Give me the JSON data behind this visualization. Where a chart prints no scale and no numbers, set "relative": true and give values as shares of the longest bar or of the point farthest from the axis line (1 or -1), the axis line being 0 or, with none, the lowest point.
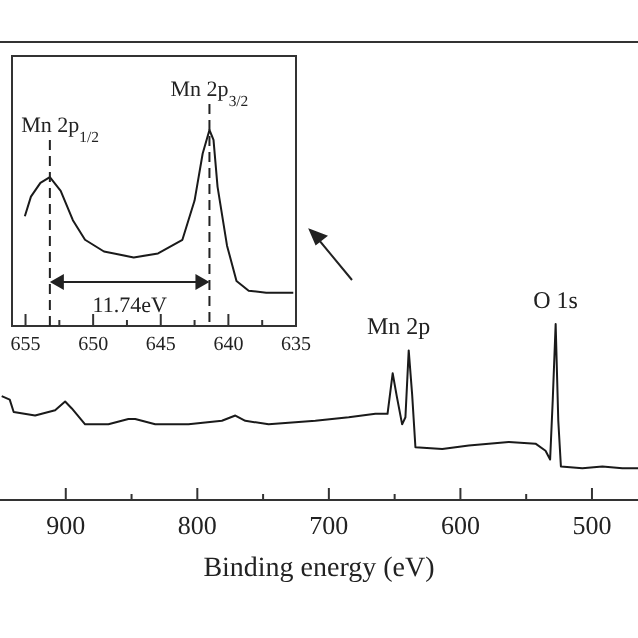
{
  "chart_data": [
    {
      "type": "line",
      "relative": true,
      "xlabel": "Binding energy (eV)",
      "xlim": [
        950,
        465
      ],
      "xticks": [
        {
          "value": 900,
          "label": "900"
        },
        {
          "value": 850,
          "label": null
        },
        {
          "value": 800,
          "label": "800"
        },
        {
          "value": 750,
          "label": null
        },
        {
          "value": 700,
          "label": "700"
        },
        {
          "value": 650,
          "label": null
        },
        {
          "value": 600,
          "label": "600"
        },
        {
          "value": 550,
          "label": null
        },
        {
          "value": 500,
          "label": "500"
        }
      ],
      "x": [
        948.7,
        942.6,
        939.6,
        923.3,
        908.1,
        900.5,
        895.4,
        885.3,
        867.6,
        852.4,
        847.2,
        832,
        806.7,
        781.3,
        771.1,
        763.5,
        745.8,
        710.3,
        684.9,
        664.6,
        655.4,
        651.5,
        648.4,
        644.3,
        641.8,
        639.3,
        636.7,
        634.2,
        613.8,
        593.6,
        563.2,
        542.9,
        535.3,
        531.8,
        529.8,
        527.6,
        525.6,
        523.6,
        507.3,
        492.1,
        476.9,
        465
      ],
      "series": [
        {
          "color": "#1a1a1a",
          "values": [
            0.59,
            0.57,
            0.5,
            0.48,
            0.51,
            0.56,
            0.52,
            0.43,
            0.43,
            0.46,
            0.46,
            0.43,
            0.43,
            0.45,
            0.48,
            0.45,
            0.43,
            0.45,
            0.47,
            0.49,
            0.49,
            0.72,
            0.59,
            0.43,
            0.47,
            0.85,
            0.6,
            0.3,
            0.29,
            0.31,
            0.33,
            0.32,
            0.28,
            0.23,
            0.57,
            1,
            0.45,
            0.19,
            0.18,
            0.19,
            0.18,
            0.18
          ]
        }
      ],
      "annotations": [
        {
          "text": "Mn 2p",
          "x": 647,
          "y": 0.85
        },
        {
          "text": "O 1s",
          "x": 527.6,
          "y": 1
        }
      ]
    },
    {
      "type": "line",
      "relative": true,
      "xlim": [
        656,
        635
      ],
      "xticks": [
        {
          "value": 655,
          "label": "655"
        },
        {
          "value": 652.5,
          "label": null
        },
        650,
        {
          "value": 647.5,
          "label": null
        },
        645,
        {
          "value": 642.5,
          "label": null
        },
        640,
        {
          "value": 637.5,
          "label": null
        },
        635
      ],
      "x": [
        655.05,
        654.6,
        653.9,
        653.2,
        652.4,
        651.5,
        650.6,
        649.2,
        647,
        645.2,
        643.4,
        642.5,
        641.9,
        641.4,
        641.1,
        640.8,
        640.1,
        639.4,
        638.5,
        637.2,
        635.2
      ],
      "series": [
        {
          "color": "#1a1a1a",
          "values": [
            0.56,
            0.66,
            0.73,
            0.76,
            0.69,
            0.54,
            0.44,
            0.38,
            0.35,
            0.37,
            0.44,
            0.64,
            0.88,
            1,
            0.95,
            0.71,
            0.41,
            0.23,
            0.18,
            0.17,
            0.17
          ]
        }
      ],
      "ref_lines": [
        {
          "axis": "x",
          "value": 653.2,
          "label": "Mn 2p$_{1/2}$",
          "line_style": "dashed"
        },
        {
          "axis": "x",
          "value": 641.4,
          "label": "Mn 2p$_{3/2}$",
          "line_style": "dashed"
        }
      ],
      "annotations": [
        "11.74eV"
      ]
    }
  ]
}
